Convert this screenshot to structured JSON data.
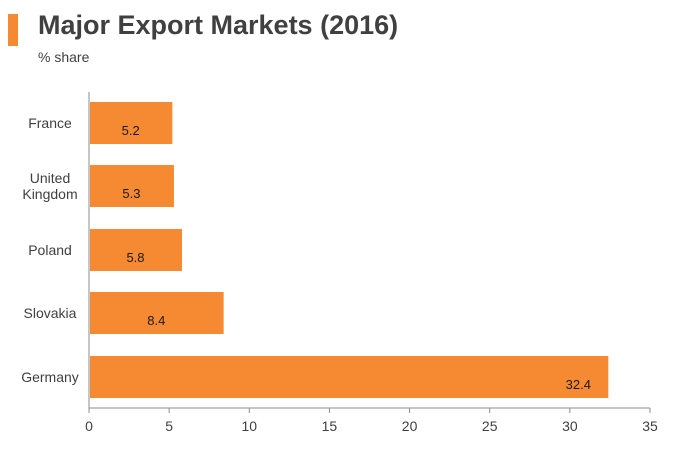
{
  "header": {
    "title": "Major Export Markets (2016)",
    "subtitle": "% share"
  },
  "colors": {
    "accent": "#F58A32",
    "bar": "#F58A32",
    "axis": "#8c8c8c",
    "text": "#404040"
  },
  "chart_data": {
    "type": "bar",
    "orientation": "horizontal",
    "title": "Major Export Markets (2016)",
    "subtitle": "% share",
    "categories": [
      [
        "France"
      ],
      [
        "United",
        "Kingdom"
      ],
      [
        "Poland"
      ],
      [
        "Slovakia"
      ],
      [
        "Germany"
      ]
    ],
    "values": [
      5.2,
      5.3,
      5.8,
      8.4,
      32.4
    ],
    "value_labels": [
      "5.2",
      "5.3",
      "5.8",
      "8.4",
      "32.4"
    ],
    "xlim": [
      0,
      35
    ],
    "xticks": [
      0,
      5,
      10,
      15,
      20,
      25,
      30,
      35
    ],
    "xlabel": "",
    "ylabel": "",
    "grid": false,
    "legend": "none"
  }
}
